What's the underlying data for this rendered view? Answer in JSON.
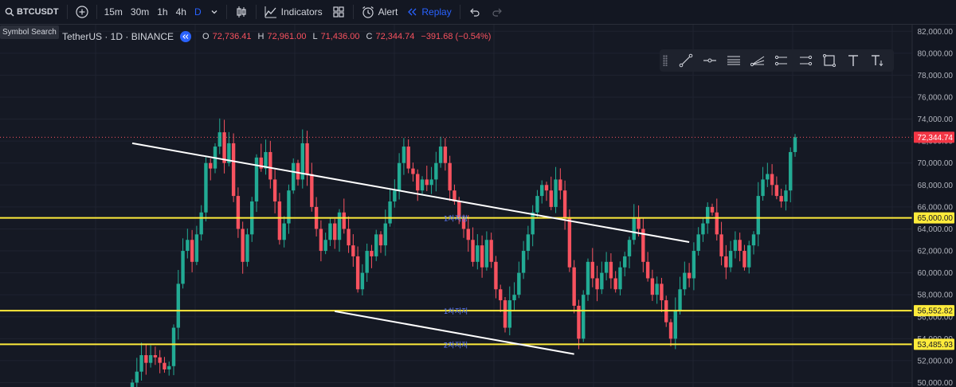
{
  "toolbar": {
    "symbol": "BTCUSDT",
    "intervals": [
      "15m",
      "30m",
      "1h",
      "4h",
      "D"
    ],
    "active_interval": "D",
    "indicators_label": "Indicators",
    "alert_label": "Alert",
    "replay_label": "Replay"
  },
  "tooltip": "Symbol Search",
  "legend": {
    "title": "TetherUS · 1D · BINANCE",
    "open_label": "O",
    "open": "72,736.41",
    "high_label": "H",
    "high": "72,961.00",
    "low_label": "L",
    "low": "71,436.00",
    "close_label": "C",
    "close": "72,344.74",
    "change": "−391.68 (−0.54%)"
  },
  "icons": {
    "search": "search-icon",
    "add": "add-symbol-icon",
    "chevron": "chevron-down-icon",
    "candles": "candles-icon",
    "indicators": "indicators-icon",
    "templates": "layout-templates-icon",
    "alert": "alert-clock-icon",
    "replay": "replay-icon",
    "undo": "undo-icon",
    "redo": "redo-icon",
    "play": "play-icon"
  },
  "colors": {
    "background": "#151924",
    "up": "#22ab94",
    "down": "#f7525f",
    "level_line": "#ffeb3b",
    "trend_line": "#ffffff",
    "level_text": "#5d7cff",
    "price_tag": "#f23645",
    "accent": "#2962ff"
  },
  "chart_data": {
    "type": "candlestick",
    "y_ticks": [
      50000,
      52000,
      54000,
      56000,
      58000,
      60000,
      62000,
      64000,
      66000,
      68000,
      70000,
      72000,
      74000,
      76000,
      78000,
      80000,
      82000
    ],
    "ylim": [
      49600,
      82600
    ],
    "current_price": 72344.74,
    "current_price_label": "72,344.74",
    "levels": [
      {
        "price": 65000,
        "label": "65,000.00",
        "text": "1차저항"
      },
      {
        "price": 56552.82,
        "label": "56,552.82",
        "text": "1차지지"
      },
      {
        "price": 53485.93,
        "label": "53,485.93",
        "text": "2차지지"
      }
    ],
    "trendlines": [
      {
        "from": [
          0,
          71800
        ],
        "to": [
          121,
          62800
        ]
      },
      {
        "from": [
          44,
          56500
        ],
        "to": [
          96,
          52600
        ]
      }
    ],
    "closes": [
      50000,
      51000,
      52500,
      51800,
      52500,
      52300,
      51800,
      51200,
      51500,
      55000,
      59000,
      62000,
      63000,
      61000,
      63500,
      65500,
      70000,
      69500,
      71500,
      72800,
      70000,
      71800,
      67000,
      64000,
      61000,
      63500,
      66500,
      70500,
      69500,
      71000,
      68500,
      66500,
      63000,
      64500,
      67500,
      70000,
      68500,
      71800,
      69000,
      66000,
      64000,
      62000,
      63000,
      64500,
      63000,
      65500,
      64000,
      62500,
      61500,
      58500,
      60000,
      62000,
      61500,
      63500,
      62500,
      64500,
      66500,
      67500,
      70000,
      71500,
      69500,
      69000,
      67500,
      68500,
      68000,
      68500,
      70000,
      71500,
      70000,
      67500,
      66500,
      65000,
      64000,
      63000,
      61000,
      62500,
      60500,
      63000,
      61000,
      58500,
      57500,
      55000,
      57500,
      58000,
      60000,
      62000,
      63500,
      65500,
      67000,
      68000,
      67500,
      66000,
      68500,
      67500,
      65000,
      60500,
      57000,
      54000,
      58000,
      61000,
      59500,
      58500,
      60000,
      61000,
      59500,
      58500,
      60500,
      61500,
      63000,
      65000,
      64000,
      61000,
      59500,
      58000,
      59000,
      57500,
      55500,
      54000,
      56500,
      58500,
      60000,
      59500,
      62000,
      63500,
      64500,
      66000,
      65500,
      63500,
      61500,
      60500,
      62000,
      63000,
      62000,
      60500,
      62500,
      63500,
      67000,
      68500,
      69000,
      68000,
      67000,
      66500,
      67500,
      71000,
      72344.74
    ]
  }
}
